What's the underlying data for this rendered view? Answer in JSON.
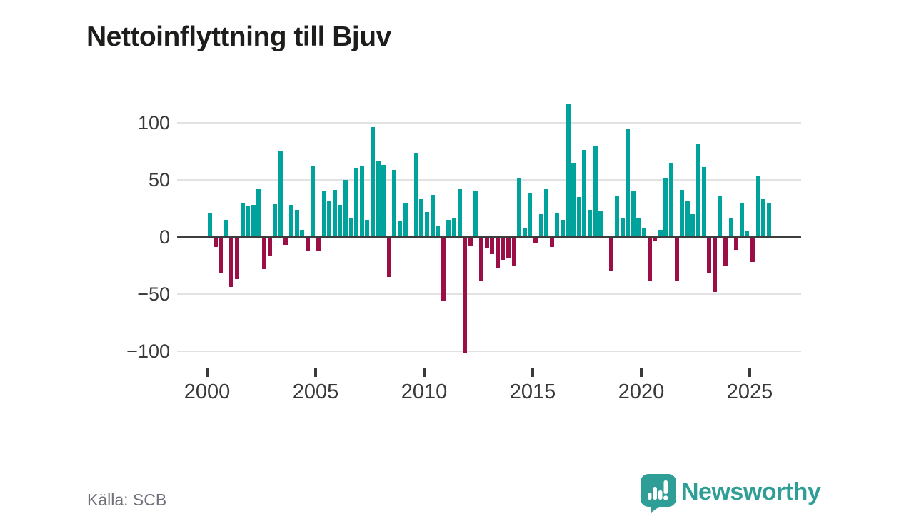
{
  "title": "Nettoinflyttning till Bjuv",
  "source": "Källa: SCB",
  "brand": {
    "name": "Newsworthy",
    "color": "#2f9e96",
    "icon": "bar-chart-exclamation-badge"
  },
  "chart_data": {
    "type": "bar",
    "title": "Nettoinflyttning till Bjuv",
    "frequency": "quarterly",
    "x_start_year": 2000,
    "x_tick_years": [
      2000,
      2005,
      2010,
      2015,
      2020,
      2025
    ],
    "y_ticks": [
      100,
      50,
      0,
      -50,
      -100
    ],
    "ylim": [
      -110,
      125
    ],
    "grid": "horizontal",
    "legend": "none",
    "colors": {
      "positive": "#00a39b",
      "negative": "#9b0e46"
    },
    "values": [
      21,
      -9,
      -31,
      15,
      -44,
      -37,
      30,
      27,
      28,
      42,
      -28,
      -16,
      29,
      75,
      -7,
      28,
      24,
      6,
      -12,
      62,
      -12,
      40,
      31,
      41,
      28,
      50,
      17,
      60,
      62,
      15,
      96,
      67,
      63,
      -35,
      59,
      14,
      30,
      0,
      74,
      33,
      22,
      37,
      10,
      -56,
      15,
      16,
      42,
      -101,
      -8,
      40,
      -38,
      -10,
      -15,
      -27,
      -20,
      -18,
      -25,
      52,
      8,
      38,
      -5,
      20,
      42,
      -9,
      21,
      15,
      117,
      65,
      35,
      76,
      24,
      80,
      23,
      0,
      -30,
      36,
      16,
      95,
      40,
      17,
      8,
      -38,
      -4,
      6,
      52,
      65,
      -38,
      41,
      32,
      20,
      81,
      61,
      -32,
      -48,
      36,
      -25,
      16,
      -11,
      30,
      5,
      -22,
      54,
      33,
      30
    ]
  }
}
